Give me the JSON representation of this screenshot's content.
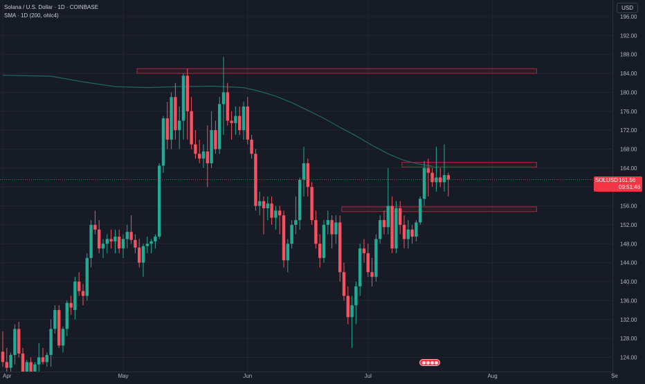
{
  "legend": {
    "title": "Solana / U.S. Dollar · 1D · COINBASE",
    "indicator": "SMA · 1D (200, ohlc4)"
  },
  "price_scale": {
    "currency": "USD"
  },
  "price_tag": {
    "symbol": "SOLUSD",
    "price": "161.56",
    "countdown": "09:51:46"
  },
  "colors": {
    "background": "#171b26",
    "up": "#22ab94",
    "down": "#f7525f",
    "sma": "#1f6b62",
    "zone": "#b0263f",
    "grid": "#232632",
    "axis_text": "#b2b5be"
  },
  "chart_data": {
    "type": "candlestick",
    "symbol": "SOLUSD",
    "timeframe": "1D",
    "exchange": "COINBASE",
    "current_price": 161.56,
    "x_labels": [
      {
        "label": "Apr",
        "index": 0
      },
      {
        "label": "May",
        "index": 30
      },
      {
        "label": "Jun",
        "index": 61
      },
      {
        "label": "Jul",
        "index": 91
      },
      {
        "label": "Aug",
        "index": 122
      },
      {
        "label": "Se",
        "index": 153
      }
    ],
    "y_ticks": [
      124,
      128,
      132,
      136,
      140,
      144,
      148,
      152,
      156,
      160,
      164,
      168,
      172,
      176,
      180,
      184,
      188,
      192,
      196
    ],
    "ylim": [
      121,
      199.5
    ],
    "candles": [
      [
        125.2,
        129.5,
        122.0,
        123.0
      ],
      [
        123.0,
        126.0,
        121.0,
        121.8
      ],
      [
        121.8,
        125.0,
        120.0,
        124.5
      ],
      [
        124.5,
        131.0,
        122.5,
        130.0
      ],
      [
        130.0,
        131.5,
        124.0,
        124.8
      ],
      [
        124.8,
        126.0,
        120.0,
        121.0
      ],
      [
        121.0,
        123.5,
        119.5,
        123.0
      ],
      [
        123.0,
        124.0,
        118.5,
        119.5
      ],
      [
        119.5,
        123.0,
        118.0,
        122.5
      ],
      [
        122.5,
        127.0,
        120.0,
        124.0
      ],
      [
        124.0,
        126.0,
        122.5,
        123.0
      ],
      [
        123.0,
        125.0,
        122.0,
        124.5
      ],
      [
        124.5,
        132.0,
        122.0,
        130.0
      ],
      [
        130.0,
        135.0,
        129.0,
        134.0
      ],
      [
        134.0,
        135.0,
        126.0,
        126.5
      ],
      [
        126.5,
        130.5,
        125.0,
        130.0
      ],
      [
        130.0,
        136.0,
        128.5,
        135.5
      ],
      [
        135.5,
        137.0,
        133.0,
        134.5
      ],
      [
        134.0,
        141.0,
        132.0,
        140.0
      ],
      [
        140.0,
        142.0,
        137.0,
        138.0
      ],
      [
        138.0,
        139.5,
        135.0,
        137.0
      ],
      [
        137.0,
        146.0,
        136.0,
        145.0
      ],
      [
        145.0,
        153.0,
        143.0,
        152.0
      ],
      [
        152.0,
        155.0,
        150.0,
        151.0
      ],
      [
        151.0,
        153.0,
        146.0,
        147.0
      ],
      [
        147.0,
        149.0,
        145.0,
        148.0
      ],
      [
        148.0,
        150.0,
        146.0,
        149.0
      ],
      [
        149.0,
        151.0,
        147.0,
        148.5
      ],
      [
        148.5,
        151.0,
        146.0,
        149.5
      ],
      [
        149.5,
        151.0,
        146.0,
        147.0
      ],
      [
        147.0,
        150.0,
        145.0,
        149.0
      ],
      [
        149.0,
        152.0,
        147.0,
        150.5
      ],
      [
        150.5,
        154.0,
        148.0,
        148.8
      ],
      [
        148.8,
        150.0,
        146.0,
        147.2
      ],
      [
        147.2,
        149.0,
        143.0,
        144.0
      ],
      [
        144.0,
        148.0,
        141.0,
        147.5
      ],
      [
        147.5,
        149.5,
        146.0,
        148.0
      ],
      [
        148.0,
        149.0,
        146.0,
        148.5
      ],
      [
        148.5,
        150.0,
        147.0,
        149.5
      ],
      [
        149.5,
        165.0,
        149.0,
        164.5
      ],
      [
        164.5,
        175.0,
        163.0,
        174.5
      ],
      [
        174.5,
        178.0,
        168.0,
        170.0
      ],
      [
        170.0,
        180.0,
        168.0,
        179.0
      ],
      [
        179.0,
        182.0,
        170.0,
        172.0
      ],
      [
        172.0,
        177.0,
        168.0,
        174.0
      ],
      [
        174.0,
        184.0,
        170.0,
        183.5
      ],
      [
        183.5,
        185.0,
        170.0,
        176.0
      ],
      [
        176.0,
        179.0,
        168.0,
        169.0
      ],
      [
        169.0,
        172.0,
        166.0,
        167.0
      ],
      [
        167.0,
        170.0,
        165.0,
        166.0
      ],
      [
        166.0,
        169.0,
        164.0,
        167.5
      ],
      [
        167.5,
        173.0,
        160.0,
        165.0
      ],
      [
        165.0,
        176.0,
        164.0,
        172.0
      ],
      [
        172.0,
        174.0,
        167.0,
        168.0
      ],
      [
        168.0,
        179.0,
        167.0,
        177.5
      ],
      [
        177.5,
        187.5,
        171.0,
        180.0
      ],
      [
        180.0,
        182.0,
        173.0,
        174.0
      ],
      [
        174.0,
        176.0,
        170.0,
        173.5
      ],
      [
        173.5,
        177.0,
        171.0,
        175.0
      ],
      [
        175.0,
        177.0,
        171.0,
        172.0
      ],
      [
        172.0,
        178.0,
        170.0,
        177.0
      ],
      [
        177.0,
        179.0,
        169.0,
        170.0
      ],
      [
        170.0,
        171.0,
        166.0,
        167.0
      ],
      [
        167.0,
        168.0,
        155.0,
        156.0
      ],
      [
        156.0,
        159.0,
        154.0,
        157.0
      ],
      [
        157.0,
        158.0,
        150.0,
        155.5
      ],
      [
        155.5,
        158.0,
        153.0,
        156.5
      ],
      [
        156.5,
        158.0,
        152.0,
        153.5
      ],
      [
        153.5,
        156.0,
        151.0,
        155.0
      ],
      [
        155.0,
        156.0,
        150.0,
        154.0
      ],
      [
        154.0,
        155.0,
        143.0,
        144.5
      ],
      [
        144.5,
        149.0,
        142.0,
        148.0
      ],
      [
        148.0,
        153.0,
        147.0,
        152.0
      ],
      [
        152.0,
        158.0,
        150.0,
        153.0
      ],
      [
        153.0,
        162.0,
        151.0,
        161.5
      ],
      [
        161.5,
        168.5,
        158.0,
        165.0
      ],
      [
        165.0,
        166.0,
        158.0,
        160.0
      ],
      [
        160.0,
        161.0,
        152.0,
        153.0
      ],
      [
        153.0,
        155.0,
        147.0,
        148.0
      ],
      [
        148.0,
        150.0,
        143.0,
        145.0
      ],
      [
        145.0,
        153.0,
        144.0,
        152.0
      ],
      [
        152.0,
        155.0,
        150.0,
        153.0
      ],
      [
        153.0,
        154.0,
        147.0,
        150.0
      ],
      [
        150.0,
        154.0,
        148.0,
        152.5
      ],
      [
        152.5,
        154.0,
        140.0,
        142.0
      ],
      [
        142.0,
        144.0,
        136.0,
        137.0
      ],
      [
        137.0,
        139.0,
        131.0,
        132.5
      ],
      [
        132.5,
        137.0,
        126.0,
        135.0
      ],
      [
        135.0,
        140.0,
        131.0,
        139.0
      ],
      [
        139.0,
        148.0,
        137.0,
        147.0
      ],
      [
        147.0,
        149.0,
        144.0,
        146.0
      ],
      [
        146.0,
        148.0,
        141.0,
        142.0
      ],
      [
        142.0,
        145.0,
        139.0,
        141.0
      ],
      [
        141.0,
        150.0,
        140.0,
        149.0
      ],
      [
        149.0,
        154.0,
        148.0,
        153.0
      ],
      [
        153.0,
        155.0,
        150.0,
        151.5
      ],
      [
        151.5,
        164.0,
        150.0,
        156.0
      ],
      [
        156.0,
        158.0,
        146.0,
        147.0
      ],
      [
        147.0,
        157.0,
        146.0,
        155.5
      ],
      [
        155.5,
        157.0,
        150.0,
        152.0
      ],
      [
        152.0,
        154.0,
        147.0,
        149.0
      ],
      [
        149.0,
        153.0,
        147.0,
        151.0
      ],
      [
        151.0,
        152.0,
        148.0,
        149.5
      ],
      [
        149.5,
        153.0,
        148.5,
        152.5
      ],
      [
        152.5,
        158.0,
        152.0,
        157.5
      ],
      [
        157.5,
        165.5,
        156.0,
        164.0
      ],
      [
        164.0,
        166.0,
        158.0,
        163.0
      ],
      [
        163.0,
        164.0,
        160.0,
        161.0
      ],
      [
        161.0,
        168.5,
        159.0,
        162.0
      ],
      [
        162.0,
        164.0,
        160.0,
        161.0
      ],
      [
        161.0,
        169.0,
        159.0,
        162.5
      ],
      [
        162.5,
        163.0,
        158.0,
        161.56
      ]
    ],
    "sma_200": [
      [
        0,
        183.6
      ],
      [
        12,
        183.4
      ],
      [
        20,
        182.2
      ],
      [
        28,
        181.2
      ],
      [
        36,
        181.0
      ],
      [
        44,
        181.2
      ],
      [
        52,
        181.3
      ],
      [
        60,
        181.0
      ],
      [
        64,
        180.2
      ],
      [
        68,
        179.2
      ],
      [
        72,
        177.8
      ],
      [
        76,
        176.2
      ],
      [
        80,
        174.5
      ],
      [
        84,
        172.6
      ],
      [
        88,
        170.8
      ],
      [
        92,
        168.8
      ],
      [
        96,
        167.0
      ],
      [
        100,
        165.6
      ],
      [
        104,
        164.8
      ],
      [
        107,
        164.4
      ]
    ],
    "zones": [
      {
        "from": 30,
        "to": 133,
        "low": 184.0,
        "high": 185.0
      },
      {
        "from": 96,
        "to": 133,
        "low": 164.2,
        "high": 165.2
      },
      {
        "from": 81,
        "to": 133,
        "low": 154.8,
        "high": 155.8
      }
    ],
    "grid": true,
    "legend_position": "top-left"
  }
}
